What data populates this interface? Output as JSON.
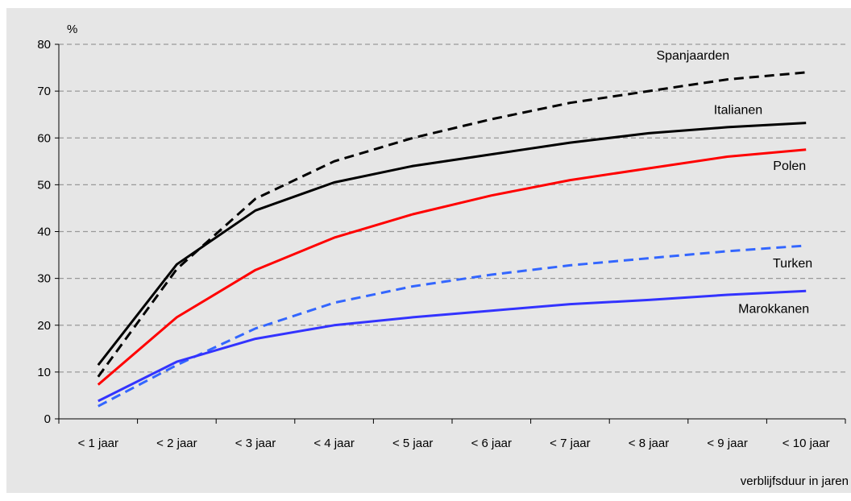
{
  "chart_data": {
    "type": "line",
    "title": "",
    "ylabel": "%",
    "xlabel": "verblijfsduur in jaren",
    "ylim": [
      0,
      80
    ],
    "yticks": [
      0,
      10,
      20,
      30,
      40,
      50,
      60,
      70,
      80
    ],
    "grid": true,
    "background": "#e6e6e6",
    "categories": [
      "< 1 jaar",
      "< 2 jaar",
      "< 3 jaar",
      "< 4 jaar",
      "< 5 jaar",
      "< 6 jaar",
      "< 7 jaar",
      "< 8 jaar",
      "< 9 jaar",
      "< 10 jaar"
    ],
    "series": [
      {
        "name": "Spanjaarden",
        "color": "#000000",
        "dash": true,
        "values": [
          9,
          32,
          47,
          55,
          60,
          64,
          67.5,
          70,
          72.5,
          74
        ]
      },
      {
        "name": "Italianen",
        "color": "#000000",
        "dash": false,
        "values": [
          11.5,
          33,
          44.5,
          50.5,
          54,
          56.5,
          59,
          61,
          62.3,
          63.2
        ]
      },
      {
        "name": "Polen",
        "color": "#ff0000",
        "dash": false,
        "values": [
          7.3,
          21.7,
          31.8,
          38.7,
          43.7,
          47.7,
          51,
          53.5,
          56,
          57.5
        ]
      },
      {
        "name": "Turken",
        "color": "#3366ff",
        "dash": true,
        "values": [
          2.7,
          11.5,
          19.3,
          24.8,
          28.3,
          30.8,
          32.8,
          34.3,
          35.8,
          37
        ]
      },
      {
        "name": "Marokkanen",
        "color": "#3333ff",
        "dash": false,
        "values": [
          3.8,
          12.2,
          17.1,
          20,
          21.7,
          23.1,
          24.5,
          25.4,
          26.5,
          27.3
        ]
      }
    ]
  }
}
